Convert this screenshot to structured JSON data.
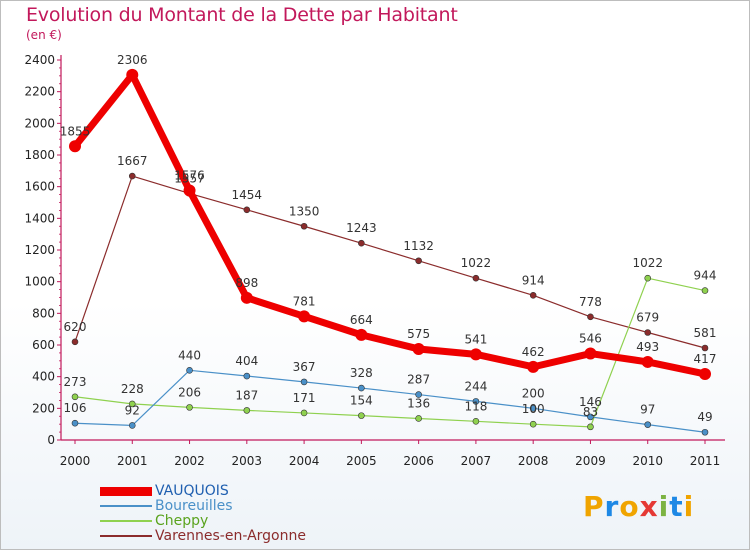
{
  "title": "Evolution du Montant de la Dette par Habitant",
  "subtitle": "(en €)",
  "logo": {
    "text": "Proxiti",
    "colors": [
      "#f0a400",
      "#1e88e5",
      "#f0a400",
      "#e53935",
      "#7cb342",
      "#1e88e5",
      "#f0a400"
    ]
  },
  "chart_data": {
    "type": "line",
    "x": [
      "2000",
      "2001",
      "2002",
      "2003",
      "2004",
      "2005",
      "2006",
      "2007",
      "2008",
      "2009",
      "2010",
      "2011"
    ],
    "ylim": [
      0,
      2400
    ],
    "yticks": [
      0,
      200,
      400,
      600,
      800,
      1000,
      1200,
      1400,
      1600,
      1800,
      2000,
      2200,
      2400
    ],
    "grid": false,
    "legend_position": "bottom-left",
    "series": [
      {
        "name": "Varennes-en-Argonne",
        "color": "#8b2c2c",
        "width": 1.2,
        "marker": 3,
        "values": [
          620,
          1667,
          1557,
          1454,
          1350,
          1243,
          1132,
          1022,
          914,
          778,
          679,
          581
        ]
      },
      {
        "name": "Cheppy",
        "color": "#8fd14f",
        "width": 1.2,
        "marker": 3,
        "values": [
          273,
          228,
          206,
          187,
          171,
          154,
          136,
          118,
          100,
          83,
          1022,
          944
        ]
      },
      {
        "name": "Boureuilles",
        "color": "#4a90c8",
        "width": 1.2,
        "marker": 3,
        "values": [
          106,
          92,
          440,
          404,
          367,
          328,
          287,
          244,
          200,
          146,
          97,
          49
        ]
      },
      {
        "name": "VAUQUOIS",
        "color": "#ee0000",
        "width": 7,
        "marker": 6,
        "values": [
          1855,
          2306,
          1576,
          898,
          781,
          664,
          575,
          541,
          462,
          546,
          493,
          417
        ]
      }
    ]
  }
}
